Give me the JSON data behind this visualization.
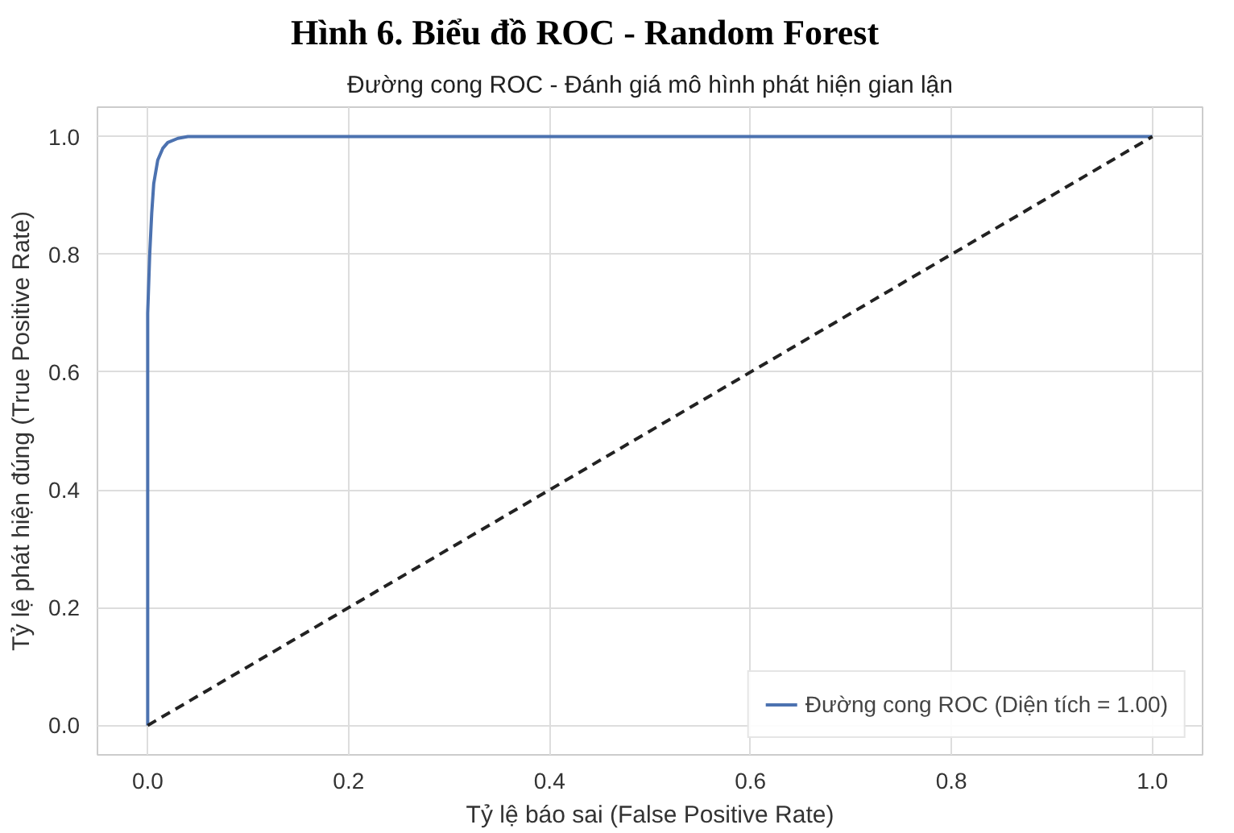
{
  "chart_data": {
    "type": "line",
    "title": "Hình 6. Biểu đồ ROC - Random Forest",
    "subtitle": "Đường cong ROC - Đánh giá mô hình phát hiện gian lận",
    "xlabel": "Tỷ lệ báo sai (False Positive Rate)",
    "ylabel": "Tỷ lệ phát hiện đúng (True Positive Rate)",
    "xlim": [
      -0.05,
      1.05
    ],
    "ylim": [
      -0.05,
      1.05
    ],
    "xticks": [
      {
        "value": 0,
        "label": "0.0"
      },
      0.2,
      0.4,
      0.6,
      0.8,
      {
        "value": 1,
        "label": "1.0"
      }
    ],
    "yticks": [
      {
        "value": 0,
        "label": "0.0"
      },
      0.2,
      0.4,
      0.6,
      0.8,
      {
        "value": 1,
        "label": "1.0"
      }
    ],
    "grid": true,
    "legend": "bottom right",
    "series": [
      {
        "name": "Đường cong ROC (Diện tích = 1.00)",
        "color": "#4c72b0",
        "line_style": "solid",
        "x": [
          0,
          0,
          0.002,
          0.004,
          0.006,
          0.01,
          0.015,
          0.02,
          0.03,
          0.04,
          1.0
        ],
        "values": [
          0,
          0.7,
          0.8,
          0.87,
          0.92,
          0.96,
          0.98,
          0.99,
          0.997,
          1.0,
          1.0
        ]
      },
      {
        "color": "#222222",
        "line_style": "dashed",
        "x": [
          0,
          1
        ],
        "values": [
          0,
          1
        ]
      }
    ]
  }
}
